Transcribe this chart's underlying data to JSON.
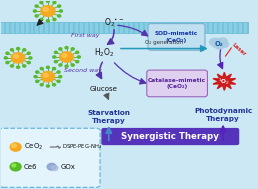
{
  "bg_color": "#cce8f4",
  "membrane_color": "#6bbfd8",
  "membrane_light": "#9dd8ee",
  "core_color": "#f5a820",
  "spike_color": "#5ab830",
  "o2_cloud_color": "#a8cce0",
  "star_color": "#cc1111",
  "laser_color": "#dd2222",
  "arrow_color": "#5533aa",
  "sod_bg": "#c0dff0",
  "sod_edge": "#7ab0cc",
  "cat_bg": "#e0d0f0",
  "cat_edge": "#9966bb",
  "syn_color": "#5533bb",
  "syn_text": "#ffffff",
  "leg_edge": "#66b8d8",
  "leg_bg": "#e4f4fc",
  "text_main": "#223399",
  "labels": {
    "superoxide": "O₂•⁻",
    "h2o2": "H₂O₂",
    "glucose": "Glucose",
    "o2gen": "O₂ generation",
    "starvation": "Starvation\nTherapy",
    "photodynamic": "Photodynamic\nTherapy",
    "synergistic": "Synergistic Therapy",
    "o2": "O₂",
    "laser": "Laser",
    "ros": "¹O₂",
    "sod": "SOD-mimetic\n(CeO₂)",
    "catalase": "Catalase-mimetic\n(CeO₂)",
    "firstway": "First way",
    "secondway": "Second way",
    "ceo2": "CeO₂",
    "ce6": "Ce6",
    "dspe": "DSPE-PEG-NH₂",
    "gox": "GOx"
  }
}
